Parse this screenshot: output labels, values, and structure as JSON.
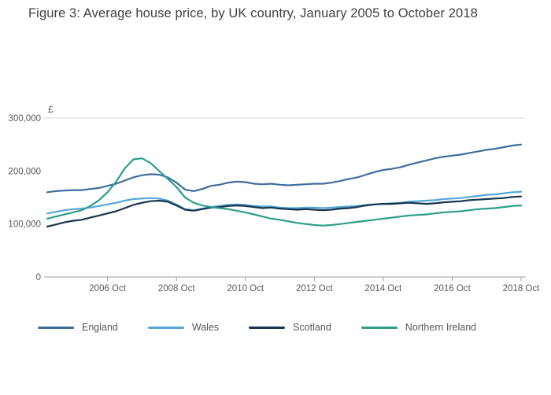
{
  "title": "Figure 3: Average house price, by UK country, January 2005 to October 2018",
  "y_axis_unit": "£",
  "chart_data": {
    "type": "line",
    "title": "Figure 3: Average house price, by UK country, January 2005 to October 2018",
    "xlabel": "",
    "ylabel": "£",
    "x_range": [
      2005,
      2018.75
    ],
    "y_range": [
      0,
      300000
    ],
    "grid": "top-line-only",
    "legend_position": "bottom",
    "x_ticks": [
      {
        "x": 2006.75,
        "label": "2006 Oct"
      },
      {
        "x": 2008.75,
        "label": "2008 Oct"
      },
      {
        "x": 2010.75,
        "label": "2010 Oct"
      },
      {
        "x": 2012.75,
        "label": "2012 Oct"
      },
      {
        "x": 2014.75,
        "label": "2014 Oct"
      },
      {
        "x": 2016.75,
        "label": "2016 Oct"
      },
      {
        "x": 2018.75,
        "label": "2018 Oct"
      }
    ],
    "y_ticks": [
      {
        "v": 0,
        "label": "0"
      },
      {
        "v": 100000,
        "label": "100,000"
      },
      {
        "v": 200000,
        "label": "200,000"
      },
      {
        "v": 300000,
        "label": "300,000"
      }
    ],
    "x": [
      2005,
      2005.25,
      2005.5,
      2005.75,
      2006,
      2006.25,
      2006.5,
      2006.75,
      2007,
      2007.25,
      2007.5,
      2007.75,
      2008,
      2008.25,
      2008.5,
      2008.75,
      2009,
      2009.25,
      2009.5,
      2009.75,
      2010,
      2010.25,
      2010.5,
      2010.75,
      2011,
      2011.25,
      2011.5,
      2011.75,
      2012,
      2012.25,
      2012.5,
      2012.75,
      2013,
      2013.25,
      2013.5,
      2013.75,
      2014,
      2014.25,
      2014.5,
      2014.75,
      2015,
      2015.25,
      2015.5,
      2015.75,
      2016,
      2016.25,
      2016.5,
      2016.75,
      2017,
      2017.25,
      2017.5,
      2017.75,
      2018,
      2018.25,
      2018.5,
      2018.75
    ],
    "series": [
      {
        "name": "England",
        "color": "#3f6d9e",
        "values": [
          160000,
          162000,
          163000,
          164000,
          164000,
          166000,
          168000,
          172000,
          176000,
          182000,
          188000,
          192000,
          194000,
          193000,
          188000,
          178000,
          165000,
          162000,
          166000,
          172000,
          174000,
          178000,
          180000,
          179000,
          176000,
          175000,
          176000,
          174000,
          173000,
          174000,
          175000,
          176000,
          176000,
          178000,
          181000,
          185000,
          188000,
          193000,
          198000,
          202000,
          204000,
          207000,
          212000,
          216000,
          220000,
          224000,
          227000,
          229000,
          231000,
          234000,
          237000,
          240000,
          242000,
          245000,
          248000,
          250000
        ]
      },
      {
        "name": "Wales",
        "color": "#56a7d8",
        "values": [
          120000,
          123000,
          126000,
          128000,
          129000,
          131000,
          134000,
          137000,
          140000,
          144000,
          147000,
          148000,
          149000,
          148000,
          144000,
          137000,
          128000,
          126000,
          129000,
          132000,
          134000,
          136000,
          137000,
          136000,
          134000,
          133000,
          133000,
          131000,
          130000,
          130000,
          131000,
          131000,
          130000,
          131000,
          132000,
          133000,
          134000,
          136000,
          137000,
          138000,
          139000,
          140000,
          142000,
          143000,
          144000,
          145000,
          147000,
          148000,
          149000,
          151000,
          153000,
          155000,
          156000,
          158000,
          160000,
          161000
        ]
      },
      {
        "name": "Scotland",
        "color": "#17354f",
        "values": [
          95000,
          99000,
          103000,
          106000,
          108000,
          112000,
          116000,
          120000,
          124000,
          130000,
          136000,
          140000,
          143000,
          144000,
          142000,
          135000,
          127000,
          125000,
          128000,
          131000,
          132000,
          134000,
          135000,
          134000,
          132000,
          130000,
          131000,
          129000,
          128000,
          127000,
          128000,
          127000,
          126000,
          127000,
          129000,
          130000,
          132000,
          135000,
          137000,
          138000,
          138000,
          139000,
          140000,
          139000,
          138000,
          139000,
          141000,
          142000,
          143000,
          145000,
          146000,
          147000,
          148000,
          149000,
          151000,
          152000
        ]
      },
      {
        "name": "Northern Ireland",
        "color": "#2e9e8a",
        "values": [
          110000,
          114000,
          118000,
          122000,
          126000,
          134000,
          145000,
          160000,
          180000,
          205000,
          222000,
          224000,
          215000,
          200000,
          185000,
          170000,
          150000,
          140000,
          135000,
          132000,
          130000,
          128000,
          125000,
          122000,
          118000,
          114000,
          110000,
          108000,
          105000,
          102000,
          100000,
          98000,
          97000,
          98000,
          100000,
          102000,
          104000,
          106000,
          108000,
          110000,
          112000,
          114000,
          116000,
          117000,
          118000,
          120000,
          122000,
          123000,
          124000,
          126000,
          128000,
          129000,
          130000,
          132000,
          134000,
          135000
        ]
      }
    ]
  },
  "legend": {
    "items": [
      {
        "label": "England"
      },
      {
        "label": "Wales"
      },
      {
        "label": "Scotland"
      },
      {
        "label": "Northern Ireland"
      }
    ]
  }
}
